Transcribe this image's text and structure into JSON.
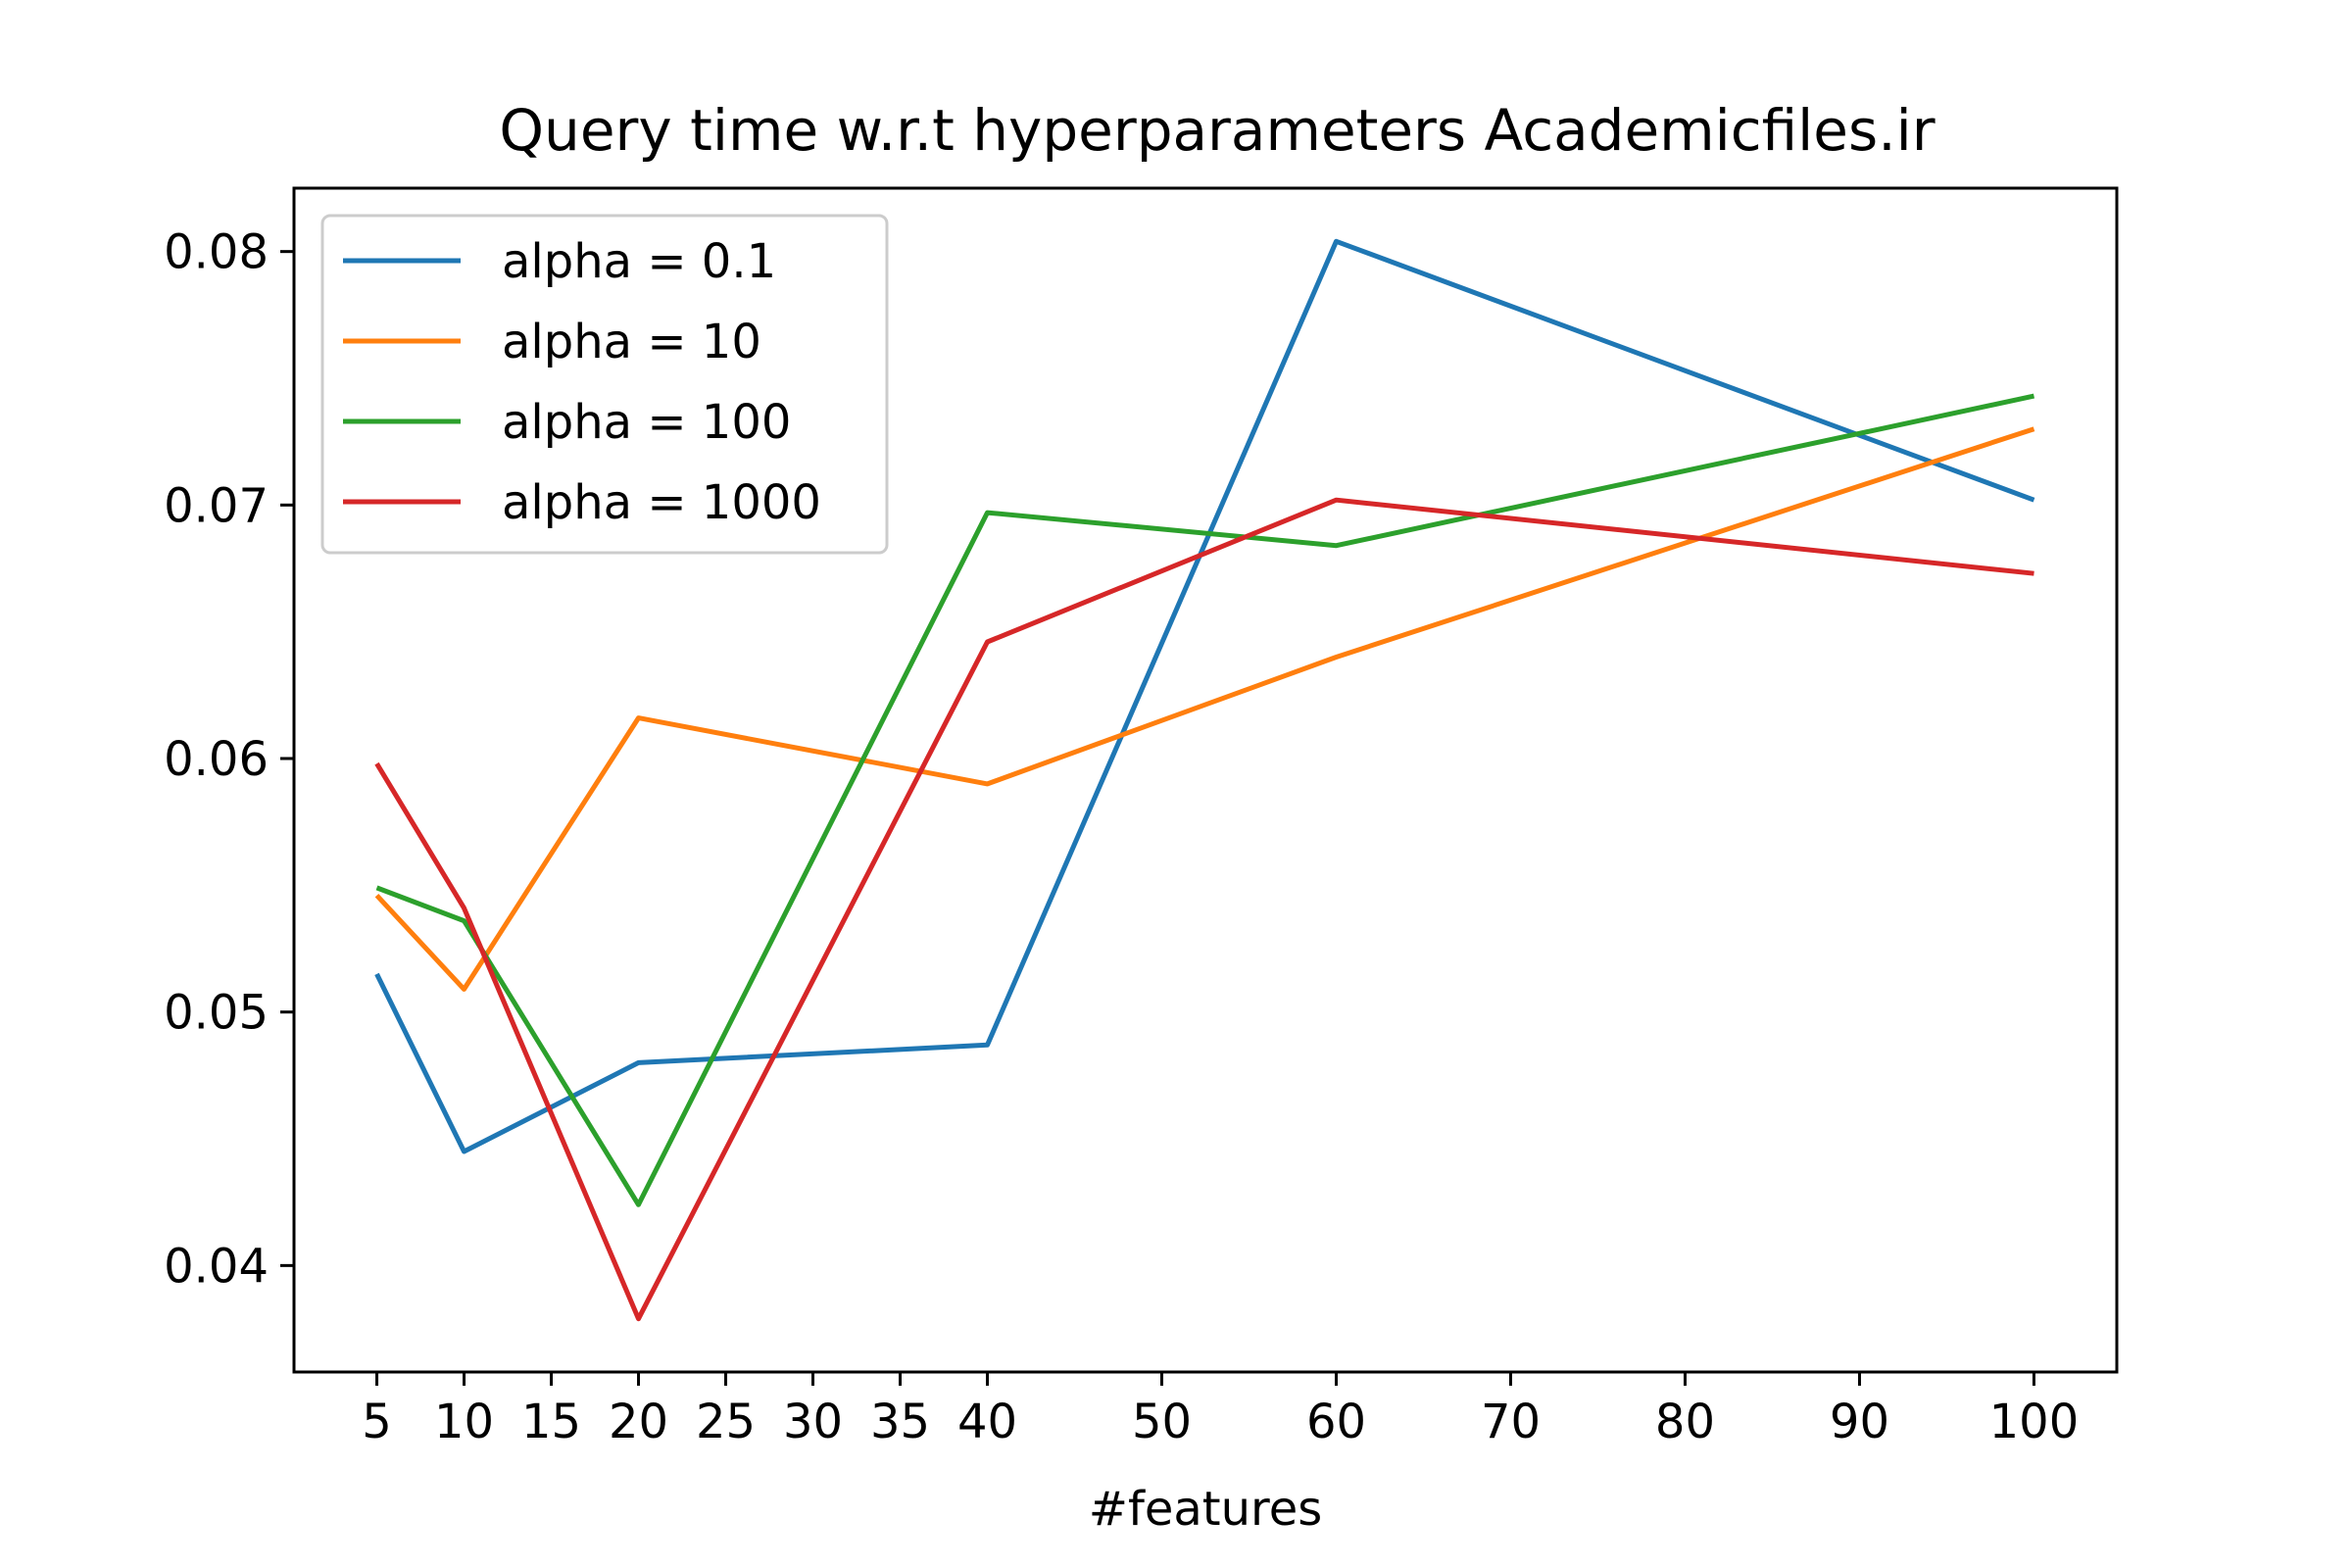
{
  "chart_data": {
    "type": "line",
    "title": "Query time w.r.t hyperparameters Academicfiles.ir",
    "xlabel": "#features",
    "ylabel": "",
    "x": [
      5,
      10,
      20,
      40,
      60,
      100
    ],
    "xticks": [
      5,
      10,
      15,
      20,
      25,
      30,
      35,
      40,
      50,
      60,
      70,
      80,
      90,
      100
    ],
    "yticks": [
      0.04,
      0.05,
      0.06,
      0.07,
      0.08
    ],
    "ytick_labels": [
      "0.04",
      "0.05",
      "0.06",
      "0.07",
      "0.08"
    ],
    "xlim": [
      0.25,
      104.75
    ],
    "ylim": [
      0.0358,
      0.0825
    ],
    "grid": false,
    "legend_position": "top-left",
    "series": [
      {
        "name": "alpha = 0.1",
        "color": "#1f77b4",
        "values": [
          0.0515,
          0.0445,
          0.048,
          0.0487,
          0.0804,
          0.0702
        ]
      },
      {
        "name": "alpha = 10",
        "color": "#ff7f0e",
        "values": [
          0.0546,
          0.0509,
          0.0616,
          0.059,
          0.064,
          0.073
        ]
      },
      {
        "name": "alpha = 100",
        "color": "#2ca02c",
        "values": [
          0.0549,
          0.0536,
          0.0424,
          0.0697,
          0.0684,
          0.0743
        ]
      },
      {
        "name": "alpha = 1000",
        "color": "#d62728",
        "values": [
          0.0598,
          0.0541,
          0.0379,
          0.0646,
          0.0702,
          0.0673
        ]
      }
    ]
  }
}
